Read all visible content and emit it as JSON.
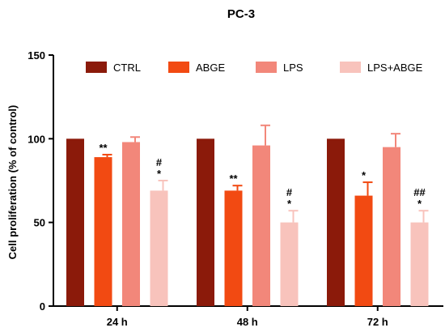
{
  "chart_data": {
    "type": "bar",
    "title": "PC-3",
    "ylabel": "Cell proliferation (% of control)",
    "xlabel": "",
    "categories": [
      "24 h",
      "48 h",
      "72 h"
    ],
    "ylim": [
      0,
      150
    ],
    "yticks": [
      "0",
      "50",
      "100",
      "150"
    ],
    "legend_position": "top",
    "series": [
      {
        "name": "CTRL",
        "color": "#8B1A0A",
        "values": [
          100,
          100,
          100
        ],
        "errors": [
          0,
          0,
          0
        ],
        "sig": [
          "",
          "",
          ""
        ]
      },
      {
        "name": "ABGE",
        "color": "#F24A12",
        "values": [
          89,
          69,
          66
        ],
        "errors": [
          1.5,
          3,
          8
        ],
        "sig": [
          "**",
          "**",
          "*"
        ]
      },
      {
        "name": "LPS",
        "color": "#F2877A",
        "values": [
          98,
          96,
          95
        ],
        "errors": [
          3,
          12,
          8
        ],
        "sig": [
          "",
          "",
          ""
        ]
      },
      {
        "name": "LPS+ABGE",
        "color": "#F8C3BC",
        "values": [
          69,
          50,
          50
        ],
        "errors": [
          6,
          7,
          7
        ],
        "sig": [
          "#\n*",
          "#\n*",
          "##\n*"
        ]
      }
    ]
  }
}
